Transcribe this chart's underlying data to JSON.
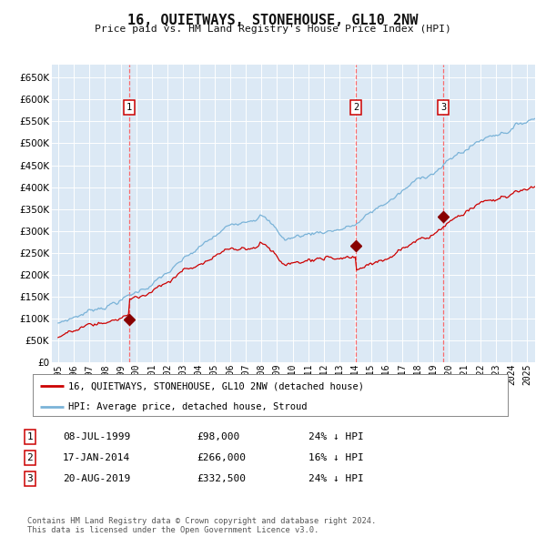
{
  "title": "16, QUIETWAYS, STONEHOUSE, GL10 2NW",
  "subtitle": "Price paid vs. HM Land Registry's House Price Index (HPI)",
  "background_color": "#ffffff",
  "plot_bg_color": "#dce9f5",
  "grid_color": "#ffffff",
  "hpi_line_color": "#7ab3d8",
  "price_line_color": "#cc0000",
  "sale_marker_color": "#880000",
  "vline_color": "#ff5555",
  "title_color": "#111111",
  "sales": [
    {
      "label": "1",
      "date_str": "08-JUL-1999",
      "date_x": 1999.52,
      "price": 98000
    },
    {
      "label": "2",
      "date_str": "17-JAN-2014",
      "date_x": 2014.04,
      "price": 266000
    },
    {
      "label": "3",
      "date_str": "20-AUG-2019",
      "date_x": 2019.63,
      "price": 332500
    }
  ],
  "table_rows": [
    {
      "num": "1",
      "date": "08-JUL-1999",
      "price": "£98,000",
      "note": "24% ↓ HPI"
    },
    {
      "num": "2",
      "date": "17-JAN-2014",
      "price": "£266,000",
      "note": "16% ↓ HPI"
    },
    {
      "num": "3",
      "date": "20-AUG-2019",
      "price": "£332,500",
      "note": "24% ↓ HPI"
    }
  ],
  "legend_line1": "16, QUIETWAYS, STONEHOUSE, GL10 2NW (detached house)",
  "legend_line2": "HPI: Average price, detached house, Stroud",
  "footer": "Contains HM Land Registry data © Crown copyright and database right 2024.\nThis data is licensed under the Open Government Licence v3.0.",
  "ylim": [
    0,
    680000
  ],
  "yticks": [
    0,
    50000,
    100000,
    150000,
    200000,
    250000,
    300000,
    350000,
    400000,
    450000,
    500000,
    550000,
    600000,
    650000
  ],
  "xlim_start": 1994.6,
  "xlim_end": 2025.5,
  "xticks": [
    1995,
    1996,
    1997,
    1998,
    1999,
    2000,
    2001,
    2002,
    2003,
    2004,
    2005,
    2006,
    2007,
    2008,
    2009,
    2010,
    2011,
    2012,
    2013,
    2014,
    2015,
    2016,
    2017,
    2018,
    2019,
    2020,
    2021,
    2022,
    2023,
    2024,
    2025
  ]
}
